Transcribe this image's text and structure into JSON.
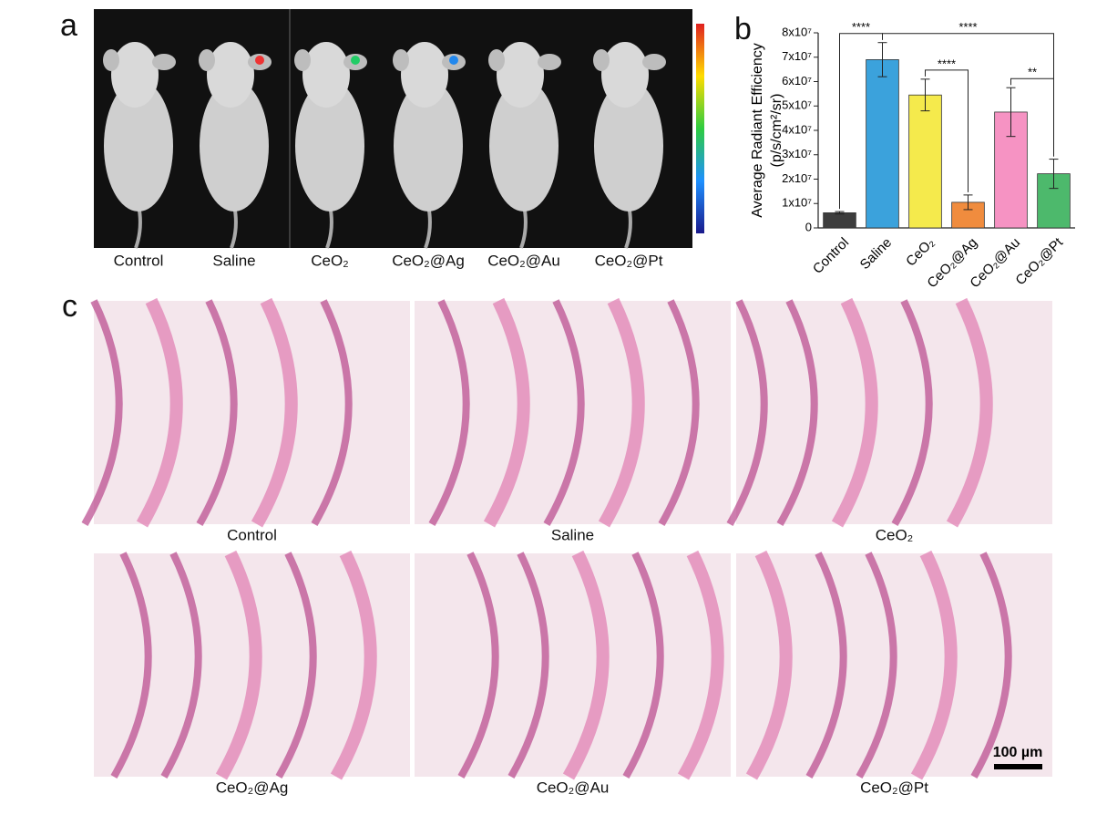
{
  "panel_a": {
    "label": "a",
    "captions": [
      "Control",
      "Saline",
      "CeO₂",
      "CeO₂@Ag",
      "CeO₂@Au",
      "CeO₂@Pt"
    ]
  },
  "chart_data": {
    "type": "bar",
    "panel_label": "b",
    "ylabel": [
      "Average Radiant Efficiency",
      "(p/s/cm²/sr)"
    ],
    "categories": [
      "Control",
      "Saline",
      "CeO₂",
      "CeO₂@Ag",
      "CeO₂@Au",
      "CeO₂@Pt"
    ],
    "values": [
      6200000,
      69000000,
      54500000,
      10500000,
      47500000,
      22200000
    ],
    "errors": [
      500000,
      7000000,
      6500000,
      3000000,
      10000000,
      6000000
    ],
    "colors": [
      "#3d3d3d",
      "#3ba2dc",
      "#f5ea4c",
      "#f08c3e",
      "#f693c3",
      "#4db96c"
    ],
    "ylim": [
      0,
      80000000
    ],
    "yticks": [
      0,
      {
        "value": 10000000,
        "label": "1x10⁷"
      },
      {
        "value": 20000000,
        "label": "2x10⁷"
      },
      {
        "value": 30000000,
        "label": "3x10⁷"
      },
      {
        "value": 40000000,
        "label": "4x10⁷"
      },
      {
        "value": 50000000,
        "label": "5x10⁷"
      },
      {
        "value": 60000000,
        "label": "6x10⁷"
      },
      {
        "value": 70000000,
        "label": "7x10⁷"
      },
      {
        "value": 80000000,
        "label": "8x10⁷"
      }
    ],
    "annotations": [
      {
        "from": 0,
        "to": 1,
        "label": "****"
      },
      {
        "from": 1,
        "to": 5,
        "label": "****"
      },
      {
        "from": 2,
        "to": 3,
        "label": "****"
      },
      {
        "from": 4,
        "to": 5,
        "label": "**"
      }
    ]
  },
  "panel_c": {
    "label": "c",
    "captions": [
      "Control",
      "Saline",
      "CeO₂",
      "CeO₂@Ag",
      "CeO₂@Au",
      "CeO₂@Pt"
    ],
    "scale_bar": "100 µm"
  }
}
